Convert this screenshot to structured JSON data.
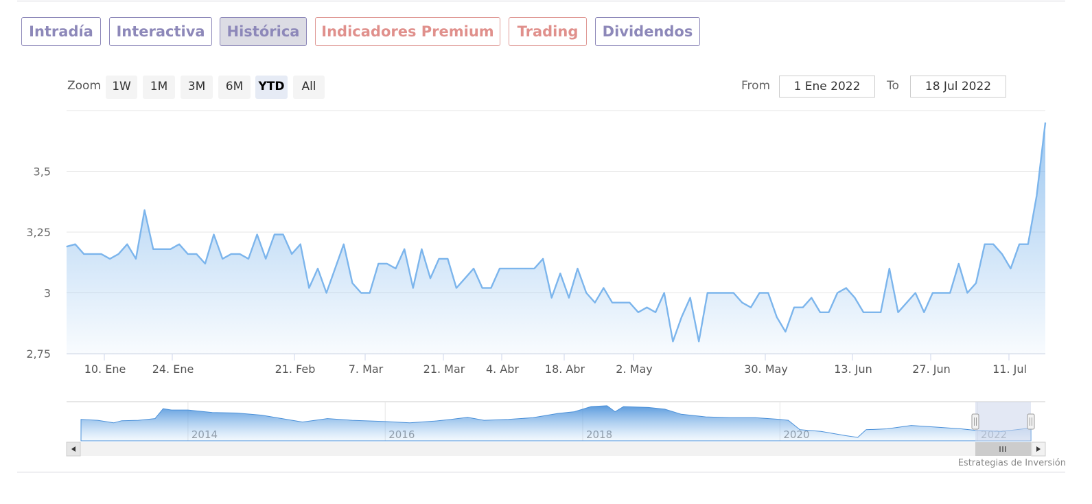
{
  "tabs": [
    {
      "label": "Intradía",
      "style": "blue",
      "active": false
    },
    {
      "label": "Interactiva",
      "style": "blue",
      "active": false
    },
    {
      "label": "Histórica",
      "style": "blue",
      "active": true
    },
    {
      "label": "Indicadores Premium",
      "style": "red",
      "active": false
    },
    {
      "label": "Trading",
      "style": "red",
      "active": false
    },
    {
      "label": "Dividendos",
      "style": "blue",
      "active": false
    }
  ],
  "zoom": {
    "label": "Zoom",
    "buttons": [
      "1W",
      "1M",
      "3M",
      "6M",
      "YTD",
      "All"
    ],
    "selected": "YTD"
  },
  "range": {
    "from_label": "From",
    "from_value": "1 Ene 2022",
    "to_label": "To",
    "to_value": "18 Jul 2022"
  },
  "credit": "Estrategias de Inversión",
  "colors": {
    "line": "#7cb5ec",
    "tab_blue": "#8d88b9",
    "tab_red": "#e0908c",
    "navigator_mask": "#ccd6eb"
  },
  "chart_data": {
    "type": "area",
    "x_type": "date",
    "y_ticks": [
      {
        "value": 2.75,
        "label": "2,75"
      },
      {
        "value": 3,
        "label": "3"
      },
      {
        "value": 3.25,
        "label": "3,25"
      },
      {
        "value": 3.5,
        "label": "3,5"
      }
    ],
    "x_ticks": [
      {
        "date": "2022-01-10",
        "label": "10. Ene"
      },
      {
        "date": "2022-01-24",
        "label": "24. Ene"
      },
      {
        "date": "2022-02-21",
        "label": "21. Feb"
      },
      {
        "date": "2022-03-07",
        "label": "7. Mar"
      },
      {
        "date": "2022-03-21",
        "label": "21. Mar"
      },
      {
        "date": "2022-04-04",
        "label": "4. Abr"
      },
      {
        "date": "2022-04-18",
        "label": "18. Abr"
      },
      {
        "date": "2022-05-02",
        "label": "2. May"
      },
      {
        "date": "2022-05-30",
        "label": "30. May"
      },
      {
        "date": "2022-06-13",
        "label": "13. Jun"
      },
      {
        "date": "2022-06-27",
        "label": "27. Jun"
      },
      {
        "date": "2022-07-11",
        "label": "11. Jul"
      }
    ],
    "series": [
      {
        "values": [
          [
            "2022-01-03",
            3.19
          ],
          [
            "2022-01-04",
            3.2
          ],
          [
            "2022-01-05",
            3.16
          ],
          [
            "2022-01-06",
            3.16
          ],
          [
            "2022-01-07",
            3.16
          ],
          [
            "2022-01-10",
            3.14
          ],
          [
            "2022-01-11",
            3.16
          ],
          [
            "2022-01-12",
            3.2
          ],
          [
            "2022-01-13",
            3.14
          ],
          [
            "2022-01-14",
            3.34
          ],
          [
            "2022-01-17",
            3.18
          ],
          [
            "2022-01-18",
            3.18
          ],
          [
            "2022-01-19",
            3.18
          ],
          [
            "2022-01-20",
            3.2
          ],
          [
            "2022-01-21",
            3.16
          ],
          [
            "2022-01-24",
            3.16
          ],
          [
            "2022-01-25",
            3.12
          ],
          [
            "2022-01-26",
            3.24
          ],
          [
            "2022-01-27",
            3.14
          ],
          [
            "2022-01-28",
            3.16
          ],
          [
            "2022-01-31",
            3.16
          ],
          [
            "2022-02-01",
            3.14
          ],
          [
            "2022-02-02",
            3.24
          ],
          [
            "2022-02-03",
            3.14
          ],
          [
            "2022-02-04",
            3.24
          ],
          [
            "2022-02-07",
            3.24
          ],
          [
            "2022-02-08",
            3.16
          ],
          [
            "2022-02-09",
            3.2
          ],
          [
            "2022-02-10",
            3.02
          ],
          [
            "2022-02-11",
            3.1
          ],
          [
            "2022-02-14",
            3.0
          ],
          [
            "2022-02-15",
            3.1
          ],
          [
            "2022-02-16",
            3.2
          ],
          [
            "2022-02-17",
            3.04
          ],
          [
            "2022-02-18",
            3.0
          ],
          [
            "2022-02-21",
            3.0
          ],
          [
            "2022-02-22",
            3.12
          ],
          [
            "2022-02-23",
            3.12
          ],
          [
            "2022-02-24",
            3.1
          ],
          [
            "2022-02-25",
            3.18
          ],
          [
            "2022-02-28",
            3.02
          ],
          [
            "2022-03-01",
            3.18
          ],
          [
            "2022-03-02",
            3.06
          ],
          [
            "2022-03-03",
            3.14
          ],
          [
            "2022-03-04",
            3.14
          ],
          [
            "2022-03-07",
            3.02
          ],
          [
            "2022-03-08",
            3.06
          ],
          [
            "2022-03-09",
            3.1
          ],
          [
            "2022-03-10",
            3.02
          ],
          [
            "2022-03-11",
            3.02
          ],
          [
            "2022-03-14",
            3.1
          ],
          [
            "2022-03-15",
            3.1
          ],
          [
            "2022-03-16",
            3.1
          ],
          [
            "2022-03-17",
            3.1
          ],
          [
            "2022-03-18",
            3.1
          ],
          [
            "2022-03-21",
            3.14
          ],
          [
            "2022-03-22",
            2.98
          ],
          [
            "2022-03-23",
            3.08
          ],
          [
            "2022-03-24",
            2.98
          ],
          [
            "2022-03-25",
            3.1
          ],
          [
            "2022-03-28",
            3.0
          ],
          [
            "2022-03-29",
            2.96
          ],
          [
            "2022-03-30",
            3.02
          ],
          [
            "2022-03-31",
            2.96
          ],
          [
            "2022-04-01",
            2.96
          ],
          [
            "2022-04-04",
            2.96
          ],
          [
            "2022-04-05",
            2.92
          ],
          [
            "2022-04-06",
            2.94
          ],
          [
            "2022-04-07",
            2.92
          ],
          [
            "2022-04-08",
            3.0
          ],
          [
            "2022-04-11",
            2.8
          ],
          [
            "2022-04-12",
            2.9
          ],
          [
            "2022-04-13",
            2.98
          ],
          [
            "2022-04-14",
            2.8
          ],
          [
            "2022-04-18",
            3.0
          ],
          [
            "2022-04-19",
            3.0
          ],
          [
            "2022-04-20",
            3.0
          ],
          [
            "2022-04-21",
            3.0
          ],
          [
            "2022-04-22",
            2.96
          ],
          [
            "2022-04-25",
            2.94
          ],
          [
            "2022-04-26",
            3.0
          ],
          [
            "2022-04-27",
            3.0
          ],
          [
            "2022-04-28",
            2.9
          ],
          [
            "2022-04-29",
            2.84
          ],
          [
            "2022-05-02",
            2.94
          ],
          [
            "2022-05-03",
            2.94
          ],
          [
            "2022-05-04",
            2.98
          ],
          [
            "2022-05-05",
            2.92
          ],
          [
            "2022-05-06",
            2.92
          ],
          [
            "2022-05-09",
            3.0
          ],
          [
            "2022-05-10",
            3.02
          ],
          [
            "2022-05-11",
            2.98
          ],
          [
            "2022-05-12",
            2.92
          ],
          [
            "2022-05-13",
            2.92
          ],
          [
            "2022-05-16",
            2.92
          ],
          [
            "2022-05-17",
            3.1
          ],
          [
            "2022-05-18",
            2.92
          ],
          [
            "2022-05-19",
            2.96
          ],
          [
            "2022-05-20",
            3.0
          ],
          [
            "2022-05-23",
            2.92
          ],
          [
            "2022-05-24",
            3.0
          ],
          [
            "2022-05-25",
            3.0
          ],
          [
            "2022-05-26",
            3.0
          ],
          [
            "2022-05-27",
            3.12
          ],
          [
            "2022-05-30",
            3.0
          ],
          [
            "2022-05-31",
            3.04
          ],
          [
            "2022-06-01",
            3.2
          ],
          [
            "2022-06-02",
            3.2
          ],
          [
            "2022-06-03",
            3.16
          ],
          [
            "2022-06-06",
            3.1
          ],
          [
            "2022-06-07",
            3.2
          ],
          [
            "2022-06-08",
            3.2
          ],
          [
            "2022-06-09",
            3.4
          ],
          [
            "2022-06-10",
            3.7
          ]
        ]
      }
    ],
    "navigator": {
      "x_labels": [
        "2014",
        "2016",
        "2018",
        "2020",
        "2022"
      ],
      "series": [
        {
          "values": [
            [
              "2012-12-01",
              3.0
            ],
            [
              "2013-02-01",
              2.98
            ],
            [
              "2013-04-01",
              2.92
            ],
            [
              "2013-05-01",
              2.97
            ],
            [
              "2013-07-01",
              2.98
            ],
            [
              "2013-09-01",
              3.02
            ],
            [
              "2013-10-01",
              3.25
            ],
            [
              "2013-11-01",
              3.22
            ],
            [
              "2014-01-01",
              3.22
            ],
            [
              "2014-04-01",
              3.16
            ],
            [
              "2014-07-01",
              3.15
            ],
            [
              "2014-10-01",
              3.1
            ],
            [
              "2015-01-01",
              3.0
            ],
            [
              "2015-03-01",
              2.94
            ],
            [
              "2015-06-01",
              3.02
            ],
            [
              "2015-09-01",
              2.98
            ],
            [
              "2016-01-01",
              2.95
            ],
            [
              "2016-04-01",
              2.92
            ],
            [
              "2016-07-01",
              2.96
            ],
            [
              "2016-09-01",
              3.0
            ],
            [
              "2016-11-01",
              3.05
            ],
            [
              "2017-01-01",
              2.98
            ],
            [
              "2017-04-01",
              3.0
            ],
            [
              "2017-07-01",
              3.04
            ],
            [
              "2017-10-01",
              3.14
            ],
            [
              "2017-12-01",
              3.18
            ],
            [
              "2018-02-01",
              3.3
            ],
            [
              "2018-04-01",
              3.32
            ],
            [
              "2018-05-01",
              3.18
            ],
            [
              "2018-06-01",
              3.3
            ],
            [
              "2018-09-01",
              3.28
            ],
            [
              "2018-11-01",
              3.24
            ],
            [
              "2019-01-01",
              3.12
            ],
            [
              "2019-04-01",
              3.06
            ],
            [
              "2019-07-01",
              3.04
            ],
            [
              "2019-10-01",
              3.04
            ],
            [
              "2020-01-01",
              3.0
            ],
            [
              "2020-02-01",
              2.98
            ],
            [
              "2020-03-15",
              2.76
            ],
            [
              "2020-06-01",
              2.72
            ],
            [
              "2020-09-01",
              2.62
            ],
            [
              "2020-10-15",
              2.58
            ],
            [
              "2020-11-15",
              2.76
            ],
            [
              "2021-02-01",
              2.78
            ],
            [
              "2021-05-01",
              2.86
            ],
            [
              "2021-08-01",
              2.82
            ],
            [
              "2021-11-01",
              2.78
            ],
            [
              "2022-01-01",
              2.74
            ],
            [
              "2022-04-01",
              2.72
            ],
            [
              "2022-07-18",
              2.8
            ]
          ]
        }
      ]
    }
  }
}
